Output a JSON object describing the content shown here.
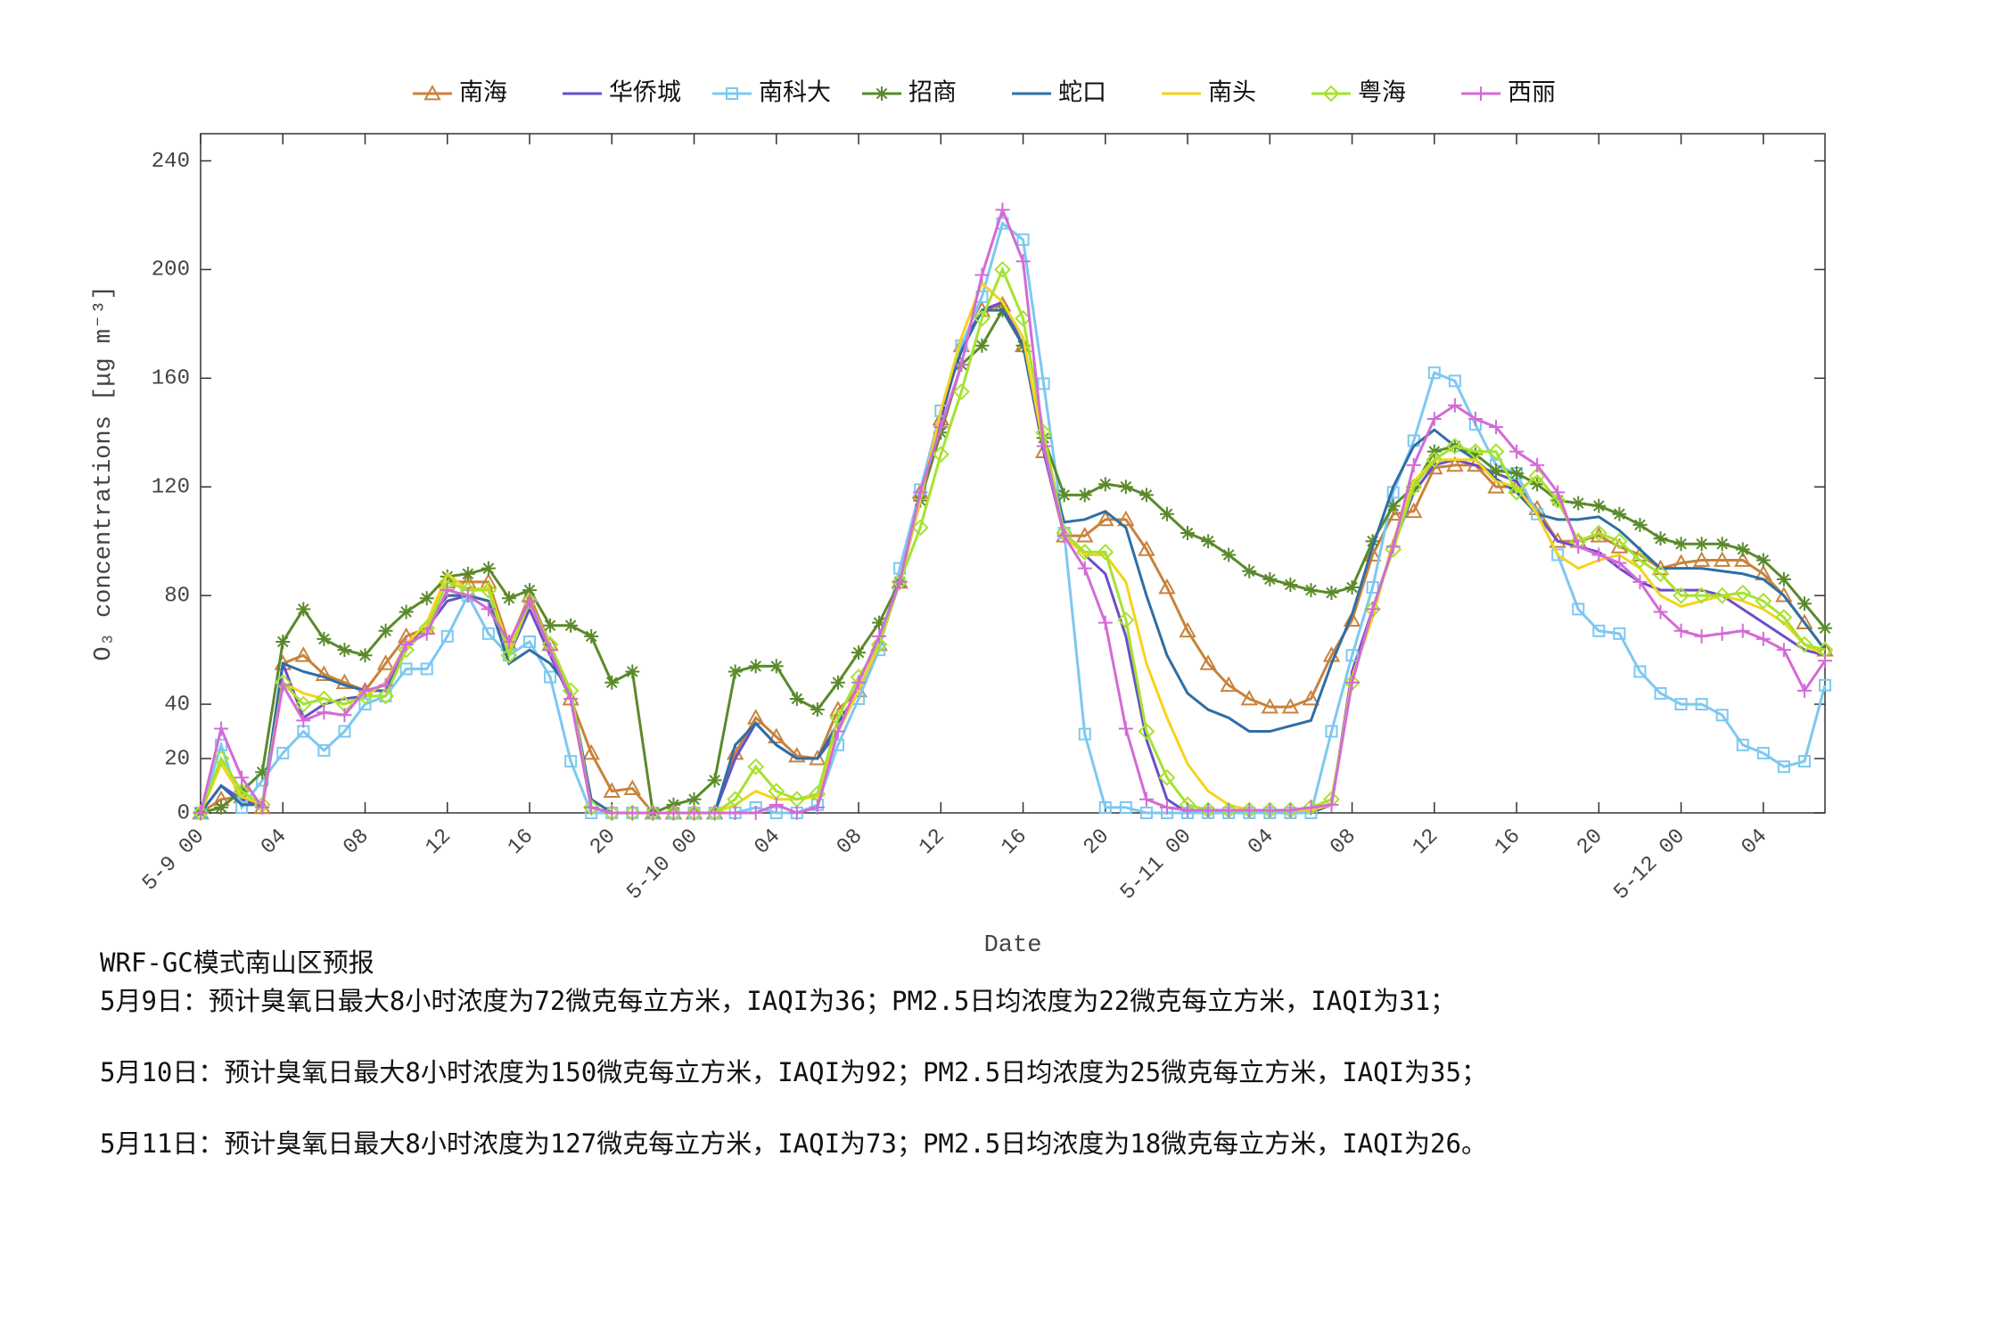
{
  "chart_data": {
    "type": "line",
    "ylabel": "O₃ concentrations [μg m⁻³]",
    "xlabel": "Date",
    "xlim": [
      0,
      79
    ],
    "ylim": [
      0,
      250
    ],
    "yticks": [
      0,
      20,
      40,
      80,
      120,
      160,
      200,
      240
    ],
    "xticks": [
      {
        "value": 0,
        "label": "5-9 00"
      },
      {
        "value": 4,
        "label": "04"
      },
      {
        "value": 8,
        "label": "08"
      },
      {
        "value": 12,
        "label": "12"
      },
      {
        "value": 16,
        "label": "16"
      },
      {
        "value": 20,
        "label": "20"
      },
      {
        "value": 24,
        "label": "5-10 00"
      },
      {
        "value": 28,
        "label": "04"
      },
      {
        "value": 32,
        "label": "08"
      },
      {
        "value": 36,
        "label": "12"
      },
      {
        "value": 40,
        "label": "16"
      },
      {
        "value": 44,
        "label": "20"
      },
      {
        "value": 48,
        "label": "5-11 00"
      },
      {
        "value": 52,
        "label": "04"
      },
      {
        "value": 56,
        "label": "08"
      },
      {
        "value": 60,
        "label": "12"
      },
      {
        "value": 64,
        "label": "16"
      },
      {
        "value": 68,
        "label": "20"
      },
      {
        "value": 72,
        "label": "5-12 00"
      },
      {
        "value": 76,
        "label": "04"
      }
    ],
    "grid": false,
    "legend": "top",
    "series": [
      {
        "name": "南海",
        "color": "#c8823c",
        "marker": "triangle",
        "values": [
          0,
          5,
          6,
          2,
          55,
          58,
          51,
          48,
          45,
          55,
          65,
          68,
          85,
          85,
          85,
          62,
          80,
          62,
          42,
          22,
          8,
          9,
          0,
          0,
          0,
          0,
          22,
          35,
          28,
          21,
          20,
          38,
          45,
          62,
          85,
          118,
          145,
          172,
          185,
          187,
          172,
          133,
          102,
          102,
          108,
          108,
          97,
          83,
          67,
          55,
          47,
          42,
          39,
          39,
          42,
          58,
          71,
          95,
          110,
          111,
          127,
          128,
          128,
          120,
          120,
          112,
          100,
          100,
          102,
          98,
          95,
          90,
          92,
          93,
          93,
          93,
          88,
          80,
          70,
          60
        ]
      },
      {
        "name": "华侨城",
        "color": "#6a4fc9",
        "marker": "none",
        "values": [
          0,
          10,
          5,
          2,
          55,
          35,
          40,
          42,
          43,
          48,
          62,
          68,
          78,
          80,
          78,
          58,
          75,
          58,
          42,
          2,
          0,
          0,
          0,
          0,
          0,
          0,
          20,
          33,
          25,
          20,
          20,
          30,
          45,
          62,
          85,
          118,
          145,
          172,
          185,
          188,
          172,
          133,
          102,
          95,
          88,
          65,
          27,
          5,
          0,
          0,
          0,
          0,
          0,
          0,
          0,
          3,
          52,
          75,
          98,
          118,
          128,
          130,
          128,
          125,
          122,
          110,
          100,
          98,
          96,
          90,
          85,
          82,
          82,
          82,
          80,
          75,
          70,
          65,
          60,
          58
        ]
      },
      {
        "name": "南科大",
        "color": "#7cc8f0",
        "marker": "square",
        "values": [
          0,
          25,
          2,
          12,
          22,
          30,
          23,
          30,
          40,
          43,
          53,
          53,
          65,
          80,
          66,
          58,
          63,
          50,
          19,
          0,
          0,
          0,
          0,
          0,
          0,
          0,
          0,
          2,
          0,
          0,
          3,
          25,
          42,
          60,
          90,
          119,
          148,
          172,
          190,
          217,
          211,
          158,
          103,
          29,
          2,
          2,
          0,
          0,
          0,
          0,
          0,
          0,
          0,
          0,
          0,
          30,
          58,
          83,
          118,
          137,
          162,
          159,
          143,
          128,
          125,
          110,
          95,
          75,
          67,
          66,
          52,
          44,
          40,
          40,
          36,
          25,
          22,
          17,
          19,
          47
        ]
      },
      {
        "name": "招商",
        "color": "#5a8a2a",
        "marker": "star",
        "values": [
          0,
          2,
          8,
          15,
          63,
          75,
          64,
          60,
          58,
          67,
          74,
          79,
          87,
          88,
          90,
          79,
          82,
          69,
          69,
          65,
          48,
          52,
          0,
          3,
          5,
          12,
          52,
          54,
          54,
          42,
          38,
          48,
          59,
          70,
          85,
          115,
          140,
          165,
          172,
          185,
          172,
          138,
          117,
          117,
          121,
          120,
          117,
          110,
          103,
          100,
          95,
          89,
          86,
          84,
          82,
          81,
          83,
          100,
          113,
          120,
          133,
          135,
          132,
          126,
          125,
          121,
          115,
          114,
          113,
          110,
          106,
          101,
          99,
          99,
          99,
          97,
          93,
          86,
          77,
          68
        ]
      },
      {
        "name": "蛇口",
        "color": "#2f6ea5",
        "marker": "none",
        "values": [
          0,
          10,
          3,
          3,
          55,
          52,
          50,
          47,
          45,
          45,
          62,
          70,
          80,
          80,
          78,
          55,
          60,
          55,
          45,
          5,
          0,
          0,
          0,
          0,
          0,
          0,
          25,
          33,
          25,
          20,
          20,
          33,
          45,
          62,
          85,
          115,
          148,
          170,
          185,
          185,
          172,
          135,
          107,
          108,
          111,
          105,
          80,
          58,
          44,
          38,
          35,
          30,
          30,
          32,
          34,
          55,
          73,
          98,
          120,
          135,
          141,
          135,
          130,
          123,
          118,
          110,
          108,
          108,
          109,
          104,
          97,
          90,
          90,
          90,
          89,
          88,
          86,
          80,
          70,
          60
        ]
      },
      {
        "name": "南头",
        "color": "#f5d31c",
        "marker": "none",
        "values": [
          0,
          18,
          6,
          3,
          48,
          44,
          42,
          40,
          43,
          48,
          62,
          70,
          88,
          82,
          83,
          60,
          78,
          60,
          45,
          2,
          0,
          0,
          0,
          0,
          0,
          0,
          3,
          8,
          5,
          5,
          6,
          30,
          45,
          62,
          85,
          115,
          148,
          175,
          195,
          188,
          175,
          135,
          102,
          95,
          95,
          85,
          55,
          35,
          18,
          8,
          3,
          1,
          1,
          1,
          1,
          3,
          50,
          72,
          100,
          122,
          130,
          130,
          130,
          122,
          120,
          110,
          95,
          90,
          93,
          95,
          90,
          80,
          76,
          78,
          80,
          78,
          75,
          70,
          62,
          58
        ]
      },
      {
        "name": "粤海",
        "color": "#a6e22e",
        "marker": "diamond",
        "values": [
          0,
          20,
          8,
          3,
          48,
          40,
          42,
          40,
          43,
          43,
          60,
          68,
          85,
          82,
          82,
          58,
          78,
          62,
          45,
          2,
          0,
          0,
          0,
          0,
          0,
          0,
          5,
          17,
          8,
          5,
          7,
          35,
          50,
          62,
          85,
          105,
          132,
          155,
          182,
          200,
          182,
          140,
          103,
          96,
          96,
          71,
          30,
          13,
          3,
          1,
          1,
          1,
          1,
          1,
          2,
          5,
          48,
          75,
          97,
          120,
          130,
          135,
          133,
          133,
          118,
          124,
          115,
          100,
          103,
          100,
          93,
          88,
          80,
          80,
          80,
          81,
          78,
          72,
          62,
          60
        ]
      },
      {
        "name": "西丽",
        "color": "#d36bd6",
        "marker": "plus",
        "values": [
          0,
          31,
          13,
          2,
          47,
          34,
          37,
          36,
          45,
          47,
          62,
          66,
          82,
          80,
          75,
          63,
          78,
          60,
          42,
          2,
          0,
          0,
          0,
          0,
          0,
          0,
          0,
          0,
          3,
          0,
          2,
          30,
          48,
          65,
          85,
          118,
          142,
          165,
          198,
          222,
          203,
          135,
          102,
          90,
          70,
          31,
          5,
          2,
          1,
          1,
          1,
          1,
          1,
          1,
          2,
          3,
          48,
          75,
          98,
          128,
          145,
          150,
          145,
          142,
          133,
          128,
          118,
          98,
          95,
          92,
          85,
          74,
          67,
          65,
          66,
          67,
          64,
          60,
          45,
          56
        ]
      }
    ]
  },
  "report": {
    "title": "WRF-GC模式南山区预报",
    "lines": [
      "5月9日：预计臭氧日最大8小时浓度为72微克每立方米，IAQI为36；PM2.5日均浓度为22微克每立方米，IAQI为31；",
      "5月10日：预计臭氧日最大8小时浓度为150微克每立方米，IAQI为92；PM2.5日均浓度为25微克每立方米，IAQI为35；",
      "5月11日：预计臭氧日最大8小时浓度为127微克每立方米，IAQI为73；PM2.5日均浓度为18微克每立方米，IAQI为26。"
    ]
  }
}
